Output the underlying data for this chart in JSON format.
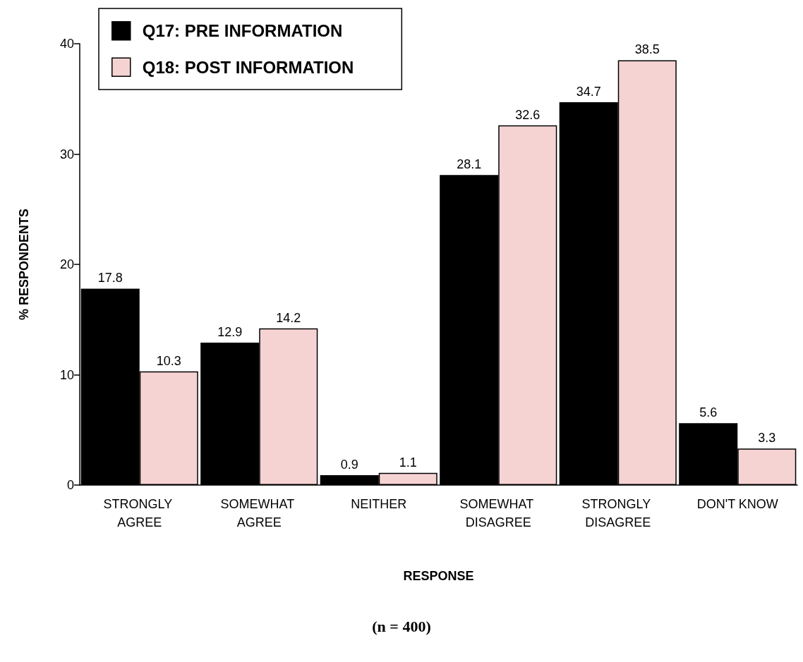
{
  "chart_data": {
    "type": "bar",
    "xlabel": "RESPONSE",
    "ylabel": "% RESPONDENTS",
    "categories": [
      "STRONGLY AGREE",
      "SOMEWHAT AGREE",
      "NEITHER",
      "SOMEWHAT DISAGREE",
      "STRONGLY DISAGREE",
      "DON'T KNOW"
    ],
    "series": [
      {
        "name": "Q17: PRE INFORMATION",
        "color": "#000000",
        "values": [
          17.8,
          12.9,
          0.9,
          28.1,
          34.7,
          5.6
        ]
      },
      {
        "name": "Q18: POST INFORMATION",
        "color": "#f6d3d3",
        "values": [
          10.3,
          14.2,
          1.1,
          32.6,
          38.5,
          3.3
        ]
      }
    ],
    "ylim": [
      0,
      40
    ],
    "yticks": [
      0,
      10,
      20,
      30,
      40
    ],
    "grid": false,
    "legend": "top left",
    "data_labels": true,
    "annotations": [
      "(n = 400)"
    ]
  }
}
